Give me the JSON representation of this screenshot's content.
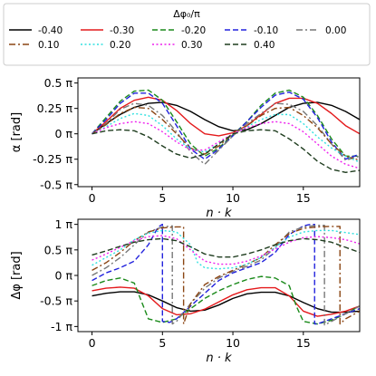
{
  "chart_data": {
    "type": "line",
    "legend": {
      "title": "Δφ₀/π",
      "placement": "top",
      "entries": [
        "-0.40",
        "-0.30",
        "-0.20",
        "-0.10",
        "0.00",
        "0.10",
        "0.20",
        "0.30",
        "0.40"
      ]
    },
    "series_styles": [
      {
        "name": "-0.40",
        "color": "#000000",
        "dash": "solid"
      },
      {
        "name": "-0.30",
        "color": "#e41a1c",
        "dash": "solid"
      },
      {
        "name": "-0.20",
        "color": "#1a8a1a",
        "dash": "dashed"
      },
      {
        "name": "-0.10",
        "color": "#2222dd",
        "dash": "dashed"
      },
      {
        "name": "0.00",
        "color": "#777777",
        "dash": "dashdot"
      },
      {
        "name": "0.10",
        "color": "#8b4513",
        "dash": "dashdot"
      },
      {
        "name": "0.20",
        "color": "#30e0e0",
        "dash": "dotted"
      },
      {
        "name": "0.30",
        "color": "#ee22ee",
        "dash": "dotted"
      },
      {
        "name": "0.40",
        "color": "#1f3d1f",
        "dash": "dashed"
      }
    ],
    "panels": [
      {
        "id": "alpha",
        "ylabel": "α [rad]",
        "xlabel": "n · k",
        "xlim": [
          -1,
          19
        ],
        "ylim": [
          -0.52,
          0.55
        ],
        "xticks": [
          0,
          5,
          10,
          15
        ],
        "yticks": [
          -0.5,
          -0.25,
          0,
          0.25,
          0.5
        ],
        "yticklabels": [
          "-0.5 π",
          "-0.25 π",
          "0 π",
          "0.25 π",
          "0.5 π"
        ],
        "grid": false,
        "x": [
          0,
          1,
          2,
          3,
          4,
          5,
          6,
          7,
          8,
          9,
          10,
          11,
          12,
          13,
          14,
          15,
          16,
          17,
          18,
          19
        ],
        "series": [
          {
            "name": "-0.40",
            "values": [
              0.0,
              0.1,
              0.19,
              0.26,
              0.3,
              0.31,
              0.28,
              0.22,
              0.14,
              0.07,
              0.03,
              0.04,
              0.1,
              0.18,
              0.26,
              0.3,
              0.31,
              0.28,
              0.22,
              0.14
            ]
          },
          {
            "name": "-0.30",
            "values": [
              0.0,
              0.12,
              0.25,
              0.33,
              0.36,
              0.33,
              0.23,
              0.1,
              0.0,
              -0.02,
              0.01,
              0.08,
              0.19,
              0.3,
              0.35,
              0.35,
              0.3,
              0.2,
              0.08,
              0.0
            ]
          },
          {
            "name": "-0.20",
            "values": [
              0.0,
              0.16,
              0.32,
              0.42,
              0.43,
              0.33,
              0.12,
              -0.1,
              -0.22,
              -0.14,
              -0.01,
              0.12,
              0.28,
              0.4,
              0.43,
              0.36,
              0.18,
              -0.05,
              -0.22,
              -0.22
            ]
          },
          {
            "name": "-0.10",
            "values": [
              0.0,
              0.14,
              0.3,
              0.4,
              0.4,
              0.3,
              0.08,
              -0.15,
              -0.25,
              -0.15,
              -0.02,
              0.12,
              0.26,
              0.38,
              0.41,
              0.34,
              0.16,
              -0.08,
              -0.25,
              -0.2
            ]
          },
          {
            "name": "0.00",
            "values": [
              0.0,
              0.1,
              0.24,
              0.3,
              0.28,
              0.18,
              0.02,
              -0.18,
              -0.3,
              -0.16,
              -0.02,
              0.1,
              0.2,
              0.3,
              0.29,
              0.22,
              0.08,
              -0.1,
              -0.26,
              -0.22
            ]
          },
          {
            "name": "0.10",
            "values": [
              0.0,
              0.09,
              0.2,
              0.26,
              0.25,
              0.14,
              0.0,
              -0.14,
              -0.2,
              -0.12,
              0.0,
              0.08,
              0.18,
              0.25,
              0.26,
              0.18,
              0.06,
              -0.1,
              -0.22,
              -0.26
            ]
          },
          {
            "name": "0.20",
            "values": [
              0.0,
              0.07,
              0.15,
              0.2,
              0.18,
              0.08,
              -0.05,
              -0.15,
              -0.18,
              -0.1,
              0.0,
              0.07,
              0.14,
              0.19,
              0.19,
              0.1,
              -0.03,
              -0.14,
              -0.22,
              -0.28
            ]
          },
          {
            "name": "0.30",
            "values": [
              0.0,
              0.06,
              0.1,
              0.12,
              0.1,
              0.02,
              -0.08,
              -0.16,
              -0.16,
              -0.08,
              0.0,
              0.06,
              0.1,
              0.12,
              0.1,
              0.02,
              -0.1,
              -0.22,
              -0.3,
              -0.34
            ]
          },
          {
            "name": "0.40",
            "values": [
              0.0,
              0.03,
              0.04,
              0.03,
              -0.03,
              -0.12,
              -0.2,
              -0.24,
              -0.2,
              -0.1,
              0.0,
              0.03,
              0.04,
              0.03,
              -0.05,
              -0.15,
              -0.27,
              -0.35,
              -0.38,
              -0.36
            ]
          }
        ]
      },
      {
        "id": "dphi",
        "ylabel": "Δφ [rad]",
        "xlabel": "n · k",
        "xlim": [
          -1,
          19
        ],
        "ylim": [
          -1.1,
          1.1
        ],
        "xticks": [
          0,
          5,
          10,
          15
        ],
        "yticks": [
          -1,
          -0.5,
          0,
          0.5,
          1
        ],
        "yticklabels": [
          "-1 π",
          "-0.5 π",
          "0 π",
          "0.5 π",
          "1 π"
        ],
        "grid": false,
        "series": [
          {
            "name": "-0.40",
            "x": [
              0,
              1,
              2,
              3,
              4,
              5,
              6,
              7,
              8,
              9,
              10,
              11,
              12,
              13,
              14,
              15,
              16,
              17,
              18,
              19
            ],
            "values": [
              -0.4,
              -0.35,
              -0.32,
              -0.32,
              -0.38,
              -0.5,
              -0.63,
              -0.7,
              -0.68,
              -0.58,
              -0.45,
              -0.36,
              -0.33,
              -0.33,
              -0.4,
              -0.53,
              -0.65,
              -0.72,
              -0.72,
              -0.7
            ]
          },
          {
            "name": "-0.30",
            "x": [
              0,
              1,
              2,
              3,
              4,
              5,
              6,
              7,
              8,
              9,
              10,
              11,
              12,
              13,
              14,
              15,
              16,
              17,
              18,
              19
            ],
            "values": [
              -0.3,
              -0.25,
              -0.23,
              -0.25,
              -0.4,
              -0.65,
              -0.77,
              -0.75,
              -0.66,
              -0.52,
              -0.38,
              -0.28,
              -0.24,
              -0.24,
              -0.4,
              -0.7,
              -0.8,
              -0.76,
              -0.7,
              -0.6
            ]
          },
          {
            "name": "-0.20",
            "x": [
              0,
              1,
              2,
              3,
              3.5,
              4,
              5,
              6,
              7,
              8,
              9,
              10,
              11,
              12,
              13,
              14,
              14.5,
              15,
              16,
              17,
              18,
              19
            ],
            "values": [
              -0.2,
              -0.1,
              -0.05,
              -0.15,
              -0.5,
              -0.85,
              -0.92,
              -0.85,
              -0.65,
              -0.45,
              -0.3,
              -0.18,
              -0.08,
              -0.02,
              -0.05,
              -0.2,
              -0.6,
              -0.9,
              -0.95,
              -0.88,
              -0.75,
              -0.6
            ]
          },
          {
            "name": "-0.10",
            "x": [
              0,
              1,
              2,
              3,
              4,
              4.7,
              5,
              5,
              5.5,
              6,
              7,
              8,
              9,
              10,
              11,
              12,
              13,
              14,
              15,
              15.5,
              15.8,
              15.8,
              16,
              17,
              18,
              19
            ],
            "values": [
              -0.1,
              0.05,
              0.15,
              0.28,
              0.6,
              0.95,
              1.0,
              -0.9,
              -0.92,
              -0.85,
              -0.6,
              -0.35,
              -0.1,
              0.05,
              0.15,
              0.25,
              0.45,
              0.8,
              0.97,
              1.0,
              1.0,
              -0.95,
              -0.95,
              -0.85,
              -0.75,
              -0.65
            ]
          },
          {
            "name": "0.00",
            "x": [
              0,
              1,
              2,
              3,
              4,
              5,
              5.7,
              5.7,
              6,
              7,
              8,
              9,
              10,
              11,
              12,
              13,
              14,
              15,
              16,
              16.5,
              16.5,
              17,
              18,
              19
            ],
            "values": [
              0.0,
              0.15,
              0.35,
              0.6,
              0.85,
              0.95,
              0.97,
              -0.95,
              -0.9,
              -0.55,
              -0.25,
              -0.05,
              0.08,
              0.18,
              0.3,
              0.55,
              0.85,
              0.95,
              0.98,
              0.98,
              -0.97,
              -0.9,
              -0.75,
              -0.6
            ]
          },
          {
            "name": "0.10",
            "x": [
              0,
              1,
              2,
              3,
              4,
              5,
              6,
              6.5,
              6.5,
              7,
              8,
              9,
              10,
              11,
              12,
              13,
              14,
              15,
              16,
              17,
              17.6,
              17.6,
              18,
              19
            ],
            "values": [
              0.1,
              0.25,
              0.45,
              0.68,
              0.85,
              0.93,
              0.95,
              0.95,
              -0.95,
              -0.55,
              -0.18,
              -0.02,
              0.1,
              0.22,
              0.35,
              0.6,
              0.82,
              0.92,
              0.95,
              0.96,
              0.96,
              -0.95,
              -0.85,
              -0.7
            ]
          },
          {
            "name": "0.20",
            "x": [
              0,
              1,
              2,
              3,
              4,
              5,
              6,
              7,
              7.5,
              8,
              9,
              10,
              11,
              12,
              13,
              14,
              15,
              16,
              17,
              18,
              19
            ],
            "values": [
              0.2,
              0.35,
              0.5,
              0.7,
              0.83,
              0.88,
              0.85,
              0.6,
              0.25,
              0.15,
              0.13,
              0.15,
              0.22,
              0.35,
              0.55,
              0.75,
              0.85,
              0.88,
              0.88,
              0.84,
              0.8
            ]
          },
          {
            "name": "0.30",
            "x": [
              0,
              1,
              2,
              3,
              4,
              5,
              6,
              7,
              8,
              9,
              10,
              11,
              12,
              13,
              14,
              15,
              16,
              17,
              18,
              19
            ],
            "values": [
              0.3,
              0.42,
              0.55,
              0.68,
              0.76,
              0.78,
              0.72,
              0.5,
              0.28,
              0.22,
              0.22,
              0.28,
              0.38,
              0.52,
              0.65,
              0.74,
              0.76,
              0.74,
              0.7,
              0.62
            ]
          },
          {
            "name": "0.40",
            "x": [
              0,
              1,
              2,
              3,
              4,
              5,
              6,
              7,
              8,
              9,
              10,
              11,
              12,
              13,
              14,
              15,
              16,
              17,
              18,
              19
            ],
            "values": [
              0.4,
              0.48,
              0.57,
              0.65,
              0.7,
              0.72,
              0.68,
              0.56,
              0.42,
              0.36,
              0.36,
              0.42,
              0.5,
              0.6,
              0.68,
              0.72,
              0.7,
              0.65,
              0.55,
              0.45
            ]
          }
        ]
      }
    ]
  }
}
